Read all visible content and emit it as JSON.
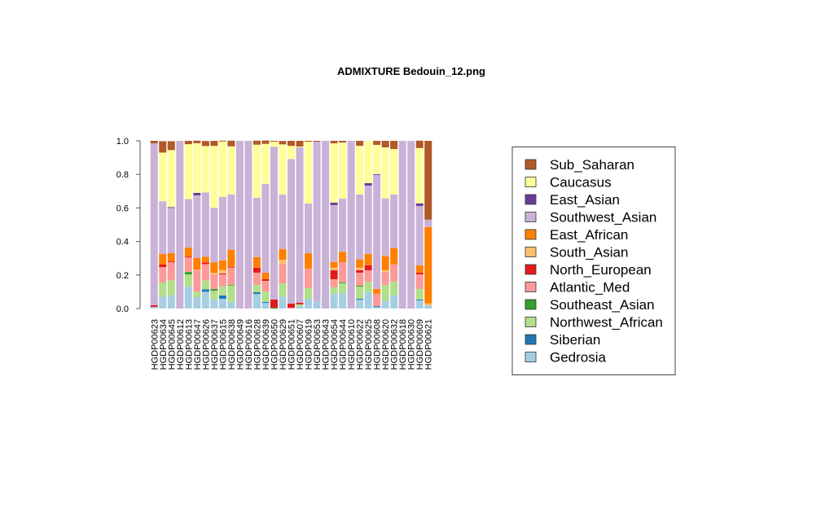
{
  "chart_data": {
    "type": "bar",
    "stacked": true,
    "title": "ADMIXTURE Bedouin_12.png",
    "xlabel": "",
    "ylabel": "",
    "ylim": [
      0,
      1
    ],
    "yticks": [
      "0.0",
      "0.2",
      "0.4",
      "0.6",
      "0.8",
      "1.0"
    ],
    "grid": false,
    "legend_position": "right",
    "categories": [
      "HGDP00623",
      "HGDP00634",
      "HGDP00645",
      "HGDP00612",
      "HGDP00613",
      "HGDP00647",
      "HGDP00626",
      "HGDP00637",
      "HGDP00615",
      "HGDP00638",
      "HGDP00649",
      "HGDP00616",
      "HGDP00628",
      "HGDP00639",
      "HGDP00650",
      "HGDP00629",
      "HGDP00651",
      "HGDP00607",
      "HGDP00619",
      "HGDP00653",
      "HGDP00643",
      "HGDP00654",
      "HGDP00644",
      "HGDP00610",
      "HGDP00622",
      "HGDP00625",
      "HGDP00608",
      "HGDP00620",
      "HGDP00632",
      "HGDP00618",
      "HGDP00630",
      "HGDP00609",
      "HGDP00621"
    ],
    "series": [
      {
        "name": "Gedrosia",
        "color": "#A6CEE3",
        "values": [
          0.01,
          0.07,
          0.078,
          0,
          0.13,
          0.068,
          0.1,
          0.053,
          0.058,
          0.04,
          0,
          0,
          0.087,
          0.034,
          0,
          0.07,
          0,
          0.015,
          0.058,
          0.044,
          0,
          0.087,
          0.092,
          0,
          0.053,
          0.097,
          0.01,
          0.044,
          0.078,
          0,
          0,
          0.049,
          0.015
        ]
      },
      {
        "name": "Siberian",
        "color": "#1F78B4",
        "values": [
          0,
          0,
          0,
          0,
          0,
          0,
          0.015,
          0,
          0.02,
          0,
          0,
          0,
          0.01,
          0.005,
          0,
          0,
          0,
          0,
          0,
          0,
          0,
          0,
          0,
          0,
          0.005,
          0,
          0.005,
          0,
          0,
          0,
          0,
          0.005,
          0
        ]
      },
      {
        "name": "Northwest_African",
        "color": "#B2DF8A",
        "values": [
          0,
          0.085,
          0.09,
          0,
          0.073,
          0.034,
          0.053,
          0.053,
          0.053,
          0.097,
          0,
          0,
          0.044,
          0.063,
          0,
          0.08,
          0,
          0.01,
          0.063,
          0,
          0,
          0.039,
          0.058,
          0,
          0.073,
          0.063,
          0,
          0.097,
          0.083,
          0,
          0,
          0.063,
          0.005
        ]
      },
      {
        "name": "Southeast_Asian",
        "color": "#33A02C",
        "values": [
          0,
          0,
          0,
          0,
          0.015,
          0,
          0,
          0.01,
          0,
          0.005,
          0,
          0,
          0,
          0,
          0.005,
          0,
          0,
          0,
          0,
          0,
          0,
          0,
          0.005,
          0,
          0.005,
          0,
          0,
          0,
          0,
          0,
          0,
          0,
          0
        ]
      },
      {
        "name": "Atlantic_Med",
        "color": "#FB9A99",
        "values": [
          0,
          0.092,
          0.108,
          0,
          0.087,
          0.126,
          0.097,
          0.087,
          0.073,
          0.102,
          0,
          0,
          0.073,
          0.063,
          0,
          0.117,
          0.005,
          0,
          0.117,
          0,
          0,
          0.049,
          0.121,
          0,
          0.078,
          0.068,
          0.073,
          0.078,
          0.102,
          0,
          0,
          0.087,
          0.005
        ]
      },
      {
        "name": "North_European",
        "color": "#E31A1C",
        "values": [
          0.01,
          0.015,
          0.005,
          0,
          0.005,
          0,
          0.01,
          0,
          0.005,
          0.005,
          0,
          0,
          0.03,
          0.01,
          0.049,
          0,
          0.024,
          0.01,
          0,
          0,
          0,
          0.053,
          0,
          0,
          0.015,
          0.03,
          0,
          0,
          0,
          0,
          0,
          0.01,
          0
        ]
      },
      {
        "name": "South_Asian",
        "color": "#FDBF6F",
        "values": [
          0,
          0,
          0,
          0,
          0,
          0.005,
          0,
          0.01,
          0.02,
          0,
          0,
          0,
          0,
          0,
          0,
          0.024,
          0,
          0,
          0,
          0,
          0,
          0.015,
          0,
          0,
          0.015,
          0,
          0,
          0.01,
          0,
          0,
          0,
          0,
          0.005
        ]
      },
      {
        "name": "East_African",
        "color": "#FF7F00",
        "values": [
          0,
          0.063,
          0.049,
          0,
          0.053,
          0.068,
          0.034,
          0.063,
          0.058,
          0.102,
          0,
          0,
          0.063,
          0.039,
          0,
          0.063,
          0,
          0,
          0.092,
          0,
          0,
          0.034,
          0.063,
          0,
          0.049,
          0.068,
          0.029,
          0.083,
          0.097,
          0,
          0,
          0.044,
          0.456
        ]
      },
      {
        "name": "Southwest_Asian",
        "color": "#CAB2D6",
        "values": [
          0.965,
          0.315,
          0.27,
          1,
          0.29,
          0.374,
          0.383,
          0.325,
          0.379,
          0.33,
          1,
          1,
          0.354,
          0.53,
          0.911,
          0.325,
          0.863,
          0.926,
          0.296,
          0.951,
          1,
          0.34,
          0.316,
          1,
          0.388,
          0.407,
          0.68,
          0.345,
          0.32,
          1,
          1,
          0.354,
          0.044
        ]
      },
      {
        "name": "East_Asian",
        "color": "#6A3D9A",
        "values": [
          0,
          0,
          0.005,
          0,
          0,
          0.015,
          0,
          0,
          0,
          0,
          0,
          0,
          0,
          0,
          0,
          0,
          0,
          0,
          0,
          0,
          0,
          0.015,
          0,
          0,
          0,
          0.015,
          0.005,
          0,
          0,
          0,
          0,
          0.015,
          0
        ]
      },
      {
        "name": "Caucasus",
        "color": "#FFFF99",
        "values": [
          0,
          0.29,
          0.34,
          0,
          0.327,
          0.296,
          0.277,
          0.369,
          0.33,
          0.286,
          0,
          0,
          0.316,
          0.238,
          0.03,
          0.3,
          0.078,
          0.005,
          0.369,
          0,
          0,
          0.353,
          0.335,
          0,
          0.289,
          0.252,
          0.174,
          0.304,
          0.271,
          0,
          0,
          0.33,
          0
        ]
      },
      {
        "name": "Sub_Saharan",
        "color": "#B15928",
        "values": [
          0.015,
          0.068,
          0.053,
          0,
          0.02,
          0.015,
          0.03,
          0.03,
          0.005,
          0.034,
          0,
          0,
          0.024,
          0.02,
          0.005,
          0.02,
          0.03,
          0.034,
          0.005,
          0.005,
          0,
          0.015,
          0.01,
          0,
          0.03,
          0,
          0.024,
          0.039,
          0.049,
          0,
          0,
          0.044,
          0.47
        ]
      }
    ],
    "legend_order": [
      "Sub_Saharan",
      "Caucasus",
      "East_Asian",
      "Southwest_Asian",
      "East_African",
      "South_Asian",
      "North_European",
      "Atlantic_Med",
      "Southeast_Asian",
      "Northwest_African",
      "Siberian",
      "Gedrosia"
    ]
  }
}
